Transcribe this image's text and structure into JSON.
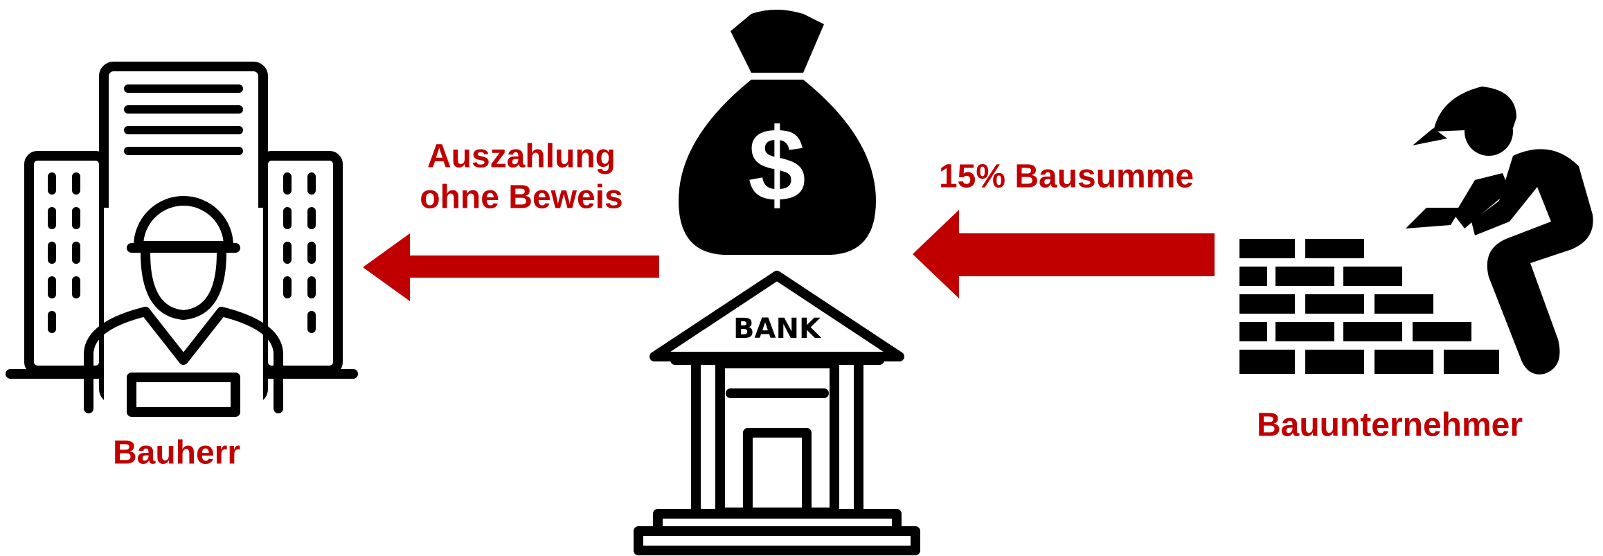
{
  "nodes": [
    {
      "label": "Bauherr"
    },
    {
      "label": "BANK",
      "symbol": "$"
    },
    {
      "label": "Bauunternehmer"
    }
  ],
  "edges": [
    {
      "label": [
        "Auszahlung",
        "ohne Beweis"
      ]
    },
    {
      "label": [
        "15% Bausumme"
      ]
    }
  ]
}
